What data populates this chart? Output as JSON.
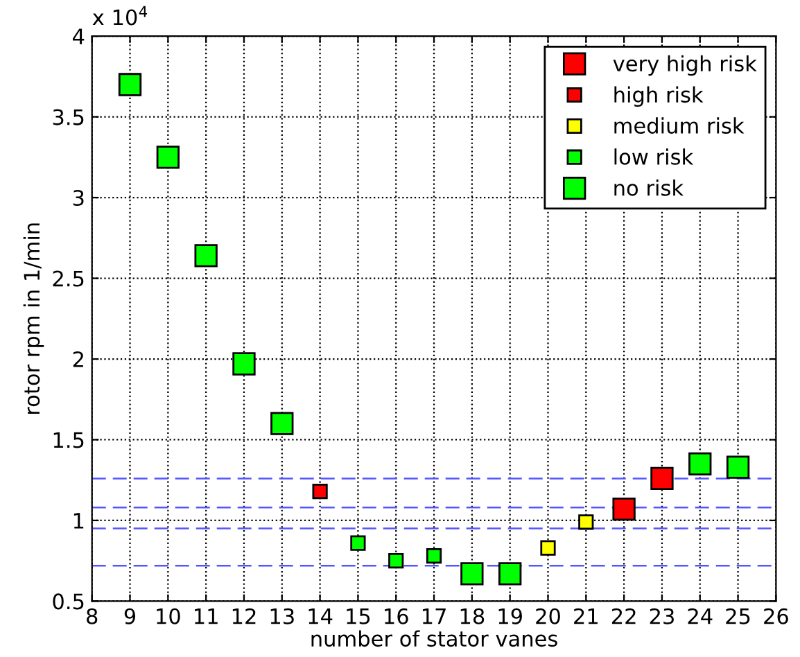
{
  "chart_data": {
    "type": "scatter",
    "xlabel": "number of stator vanes",
    "ylabel": "rotor rpm in 1/min",
    "annotations": [
      "x 10$^{4}$"
    ],
    "xlim": [
      8,
      26
    ],
    "xticks": [
      8,
      9,
      10,
      11,
      12,
      13,
      14,
      15,
      16,
      17,
      18,
      19,
      20,
      21,
      22,
      23,
      24,
      25,
      26
    ],
    "ylim": [
      0.5,
      4
    ],
    "yticks": [
      0.5,
      1,
      1.5,
      2,
      2.5,
      3,
      3.5,
      4
    ],
    "grid": true,
    "legend": "top right",
    "marker": "square",
    "series": [
      {
        "name": "very high risk",
        "color": "#ff0000",
        "x": [
          22,
          23
        ],
        "values": [
          1.07,
          1.26
        ]
      },
      {
        "name": "high risk",
        "color": "#ff0000",
        "x": [
          14
        ],
        "values": [
          1.18
        ]
      },
      {
        "name": "medium risk",
        "color": "#ffff00",
        "x": [
          20,
          21
        ],
        "values": [
          0.83,
          0.99
        ]
      },
      {
        "name": "low risk",
        "color": "#00ff00",
        "x": [
          15,
          16,
          17
        ],
        "values": [
          0.86,
          0.75,
          0.78
        ]
      },
      {
        "name": "no risk",
        "color": "#00ff00",
        "x": [
          9,
          10,
          11,
          12,
          13,
          18,
          19,
          24,
          25
        ],
        "values": [
          3.7,
          3.25,
          2.64,
          1.97,
          1.6,
          0.67,
          0.67,
          1.35,
          1.33
        ]
      }
    ],
    "ref_lines": [
      {
        "axis": "y",
        "value": 1.26,
        "color": "#5555ff",
        "line_style": "dashed"
      },
      {
        "axis": "y",
        "value": 1.08,
        "color": "#5555ff",
        "line_style": "dashed"
      },
      {
        "axis": "y",
        "value": 0.95,
        "color": "#5555ff",
        "line_style": "dashed"
      },
      {
        "axis": "y",
        "value": 0.72,
        "color": "#5555ff",
        "line_style": "dashed"
      }
    ]
  }
}
